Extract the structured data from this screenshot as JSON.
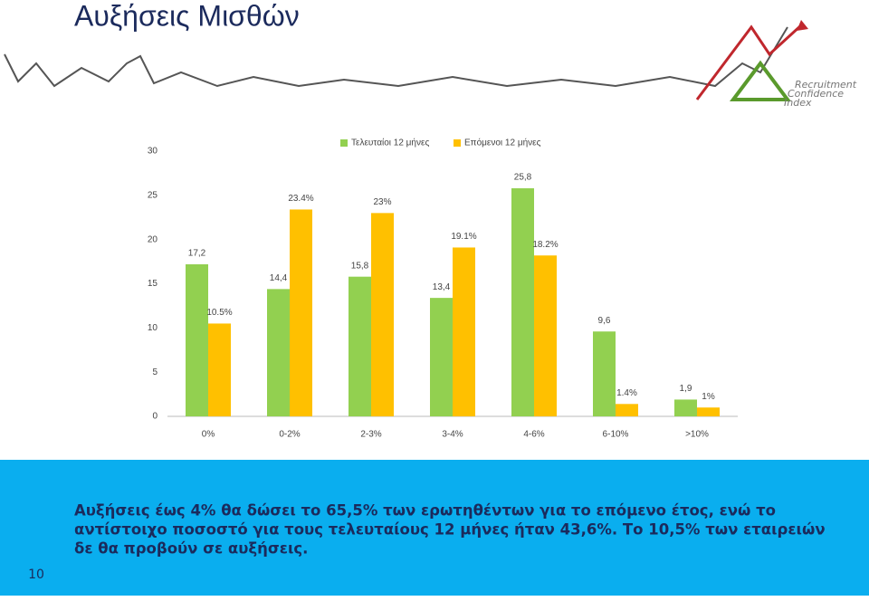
{
  "slide": {
    "title": "Αυξήσεις Μισθών",
    "text": [
      "Αυξήσεις έως 4% θα δώσει το 65,5% των ερωτηθέντων για το επόμενο έτος, ενώ το",
      "αντίστοιχο ποσοστό για τους τελευταίους 12 μήνες ήταν 43,6%. Το 10,5% των εταιρειών",
      "δε θα προβούν σε αυξήσεις."
    ],
    "page_number": "10",
    "logo": [
      "Recruitment",
      "Confidence",
      "Index"
    ]
  },
  "chart_data": {
    "type": "bar",
    "categories": [
      "0%",
      "0-2%",
      "2-3%",
      "3-4%",
      "4-6%",
      "6-10%",
      ">10%"
    ],
    "series": [
      {
        "name": "Τελευταίοι 12 μήνες",
        "color": "#92d050",
        "values": [
          17.2,
          14.4,
          15.8,
          13.4,
          25.8,
          9.6,
          1.9
        ],
        "value_labels": [
          "17,2",
          "14,4",
          "15,8",
          "13,4",
          "25,8",
          "9,6",
          "1,9"
        ]
      },
      {
        "name": "Επόμενοι 12 μήνες",
        "color": "#ffc000",
        "values": [
          10.5,
          23.4,
          23,
          19.1,
          18.2,
          1.4,
          1
        ],
        "value_labels": [
          "10.5%",
          "23.4%",
          "23%",
          "19.1%",
          "18.2%",
          "1.4%",
          "1%"
        ]
      }
    ],
    "ylim": [
      0,
      30
    ],
    "yticks": [
      0,
      5,
      10,
      15,
      20,
      25,
      30
    ],
    "grid": false,
    "legend": "top"
  }
}
